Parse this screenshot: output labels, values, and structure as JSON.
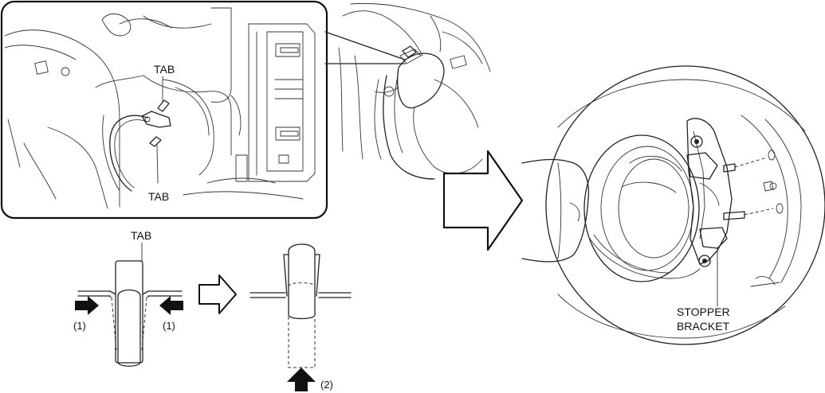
{
  "labels": {
    "tab_upper": "TAB",
    "tab_lower": "TAB",
    "tab_detail": "TAB",
    "step1_left": "(1)",
    "step1_right": "(1)",
    "step2": "(2)",
    "stopper_line1": "STOPPER",
    "stopper_line2": "BRACKET"
  }
}
